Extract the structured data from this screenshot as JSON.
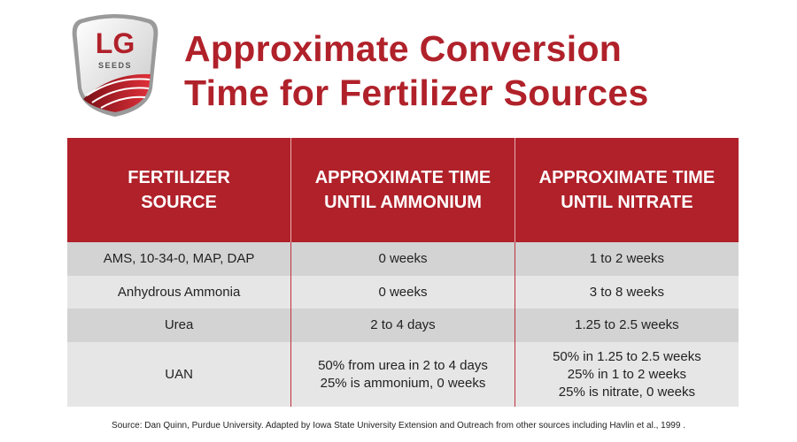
{
  "logo": {
    "text": "LG",
    "subtext": "SEEDS"
  },
  "title": [
    "Approximate Conversion",
    "Time for Fertilizer Sources"
  ],
  "table": {
    "headers": [
      [
        "FERTILIZER",
        "SOURCE"
      ],
      [
        "APPROXIMATE TIME",
        "UNTIL AMMONIUM"
      ],
      [
        "APPROXIMATE TIME",
        "UNTIL NITRATE"
      ]
    ],
    "rows": [
      {
        "source": "AMS, 10-34-0, MAP, DAP",
        "ammonium": [
          "0 weeks"
        ],
        "nitrate": [
          "1 to 2 weeks"
        ]
      },
      {
        "source": "Anhydrous Ammonia",
        "ammonium": [
          "0 weeks"
        ],
        "nitrate": [
          "3 to 8 weeks"
        ]
      },
      {
        "source": "Urea",
        "ammonium": [
          "2 to 4 days"
        ],
        "nitrate": [
          "1.25 to 2.5 weeks"
        ]
      },
      {
        "source": "UAN",
        "ammonium": [
          "50% from urea in 2 to 4 days",
          "25% is ammonium, 0 weeks"
        ],
        "nitrate": [
          "50% in 1.25 to 2.5 weeks",
          "25% in 1 to 2 weeks",
          "25% is nitrate, 0 weeks"
        ]
      }
    ]
  },
  "source": "Source: Dan Quinn, Purdue University. Adapted by Iowa State University Extension and Outreach from other sources including Havlin et al., 1999 ."
}
